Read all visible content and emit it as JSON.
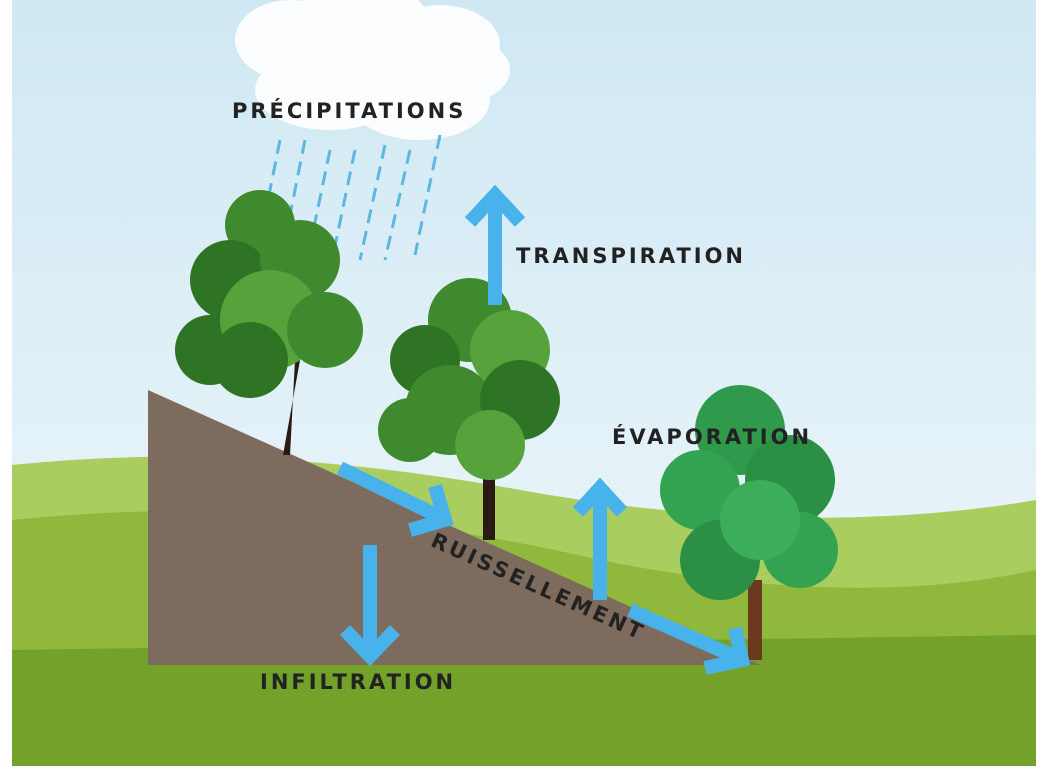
{
  "labels": {
    "precipitation": "PRÉCIPITATIONS",
    "transpiration": "TRANSPIRATION",
    "evaporation": "ÉVAPORATION",
    "runoff": "RUISSELLEMENT",
    "infiltration": "INFILTRATION"
  }
}
